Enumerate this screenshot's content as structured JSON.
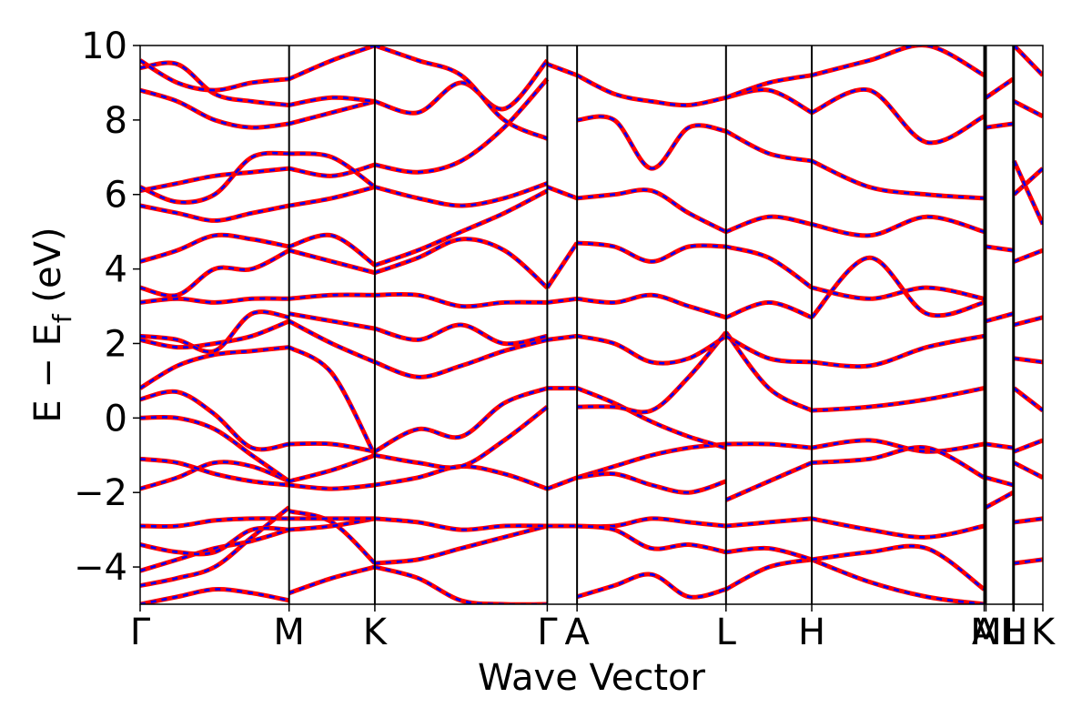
{
  "chart_data": {
    "type": "line",
    "xlabel": "Wave Vector",
    "ylabel_main": "E − E",
    "ylabel_sub": "f",
    "ylabel_unit": " (eV)",
    "ylim": [
      -5,
      10
    ],
    "y_ticks": [
      -4,
      -2,
      0,
      2,
      4,
      6,
      8,
      10
    ],
    "y_tick_labels": [
      "−4",
      "−2",
      "0",
      "2",
      "4",
      "6",
      "8",
      "10"
    ],
    "grid": false,
    "kpath_ticks": [
      {
        "label": "Γ",
        "x": 0.0
      },
      {
        "label": "M",
        "x": 0.165
      },
      {
        "label": "K",
        "x": 0.26
      },
      {
        "label": "Γ",
        "x": 0.451
      },
      {
        "label": "A",
        "x": 0.484
      },
      {
        "label": "L",
        "x": 0.649
      },
      {
        "label": "H",
        "x": 0.744
      },
      {
        "label": "A",
        "x": 0.935
      },
      {
        "label": "M",
        "x": 0.937
      },
      {
        "label": "L",
        "x": 0.967
      },
      {
        "label": "H",
        "x": 0.968
      },
      {
        "label": "K",
        "x": 1.0
      }
    ],
    "series_styles": [
      {
        "color": "#ff0000",
        "style": "solid"
      },
      {
        "color": "#0000ff",
        "style": "dashed"
      }
    ],
    "segments": [
      {
        "x_range": [
          0.0,
          0.165
        ],
        "bands": [
          [
            -5.0,
            -4.8,
            -4.6,
            -4.7,
            -4.9
          ],
          [
            -4.5,
            -4.3,
            -4.0,
            -3.2,
            -2.4
          ],
          [
            -4.1,
            -3.8,
            -3.5,
            -3.3,
            -3.0
          ],
          [
            -3.4,
            -3.6,
            -3.6,
            -3.0,
            -3.0
          ],
          [
            -2.9,
            -2.9,
            -2.75,
            -2.7,
            -2.7
          ],
          [
            -1.9,
            -1.6,
            -1.2,
            -1.3,
            -1.7
          ],
          [
            -1.1,
            -1.2,
            -1.5,
            -1.7,
            -1.8
          ],
          [
            0.0,
            0.0,
            -0.3,
            -1.0,
            -1.7
          ],
          [
            0.5,
            0.7,
            0.1,
            -0.8,
            -0.7
          ],
          [
            0.8,
            1.4,
            1.7,
            1.8,
            1.9
          ],
          [
            2.1,
            1.9,
            2.0,
            2.2,
            2.6
          ],
          [
            2.2,
            2.1,
            1.8,
            2.8,
            2.7
          ],
          [
            3.1,
            3.2,
            3.1,
            3.2,
            3.2
          ],
          [
            3.5,
            3.3,
            4.0,
            4.0,
            4.5
          ],
          [
            4.2,
            4.5,
            4.9,
            4.8,
            4.6
          ],
          [
            5.7,
            5.5,
            5.3,
            5.5,
            5.7
          ],
          [
            6.1,
            6.3,
            6.5,
            6.6,
            6.7
          ],
          [
            6.2,
            5.8,
            6.0,
            7.0,
            7.1
          ],
          [
            8.8,
            8.5,
            8.0,
            7.8,
            7.9
          ],
          [
            9.4,
            9.5,
            8.7,
            8.5,
            8.4
          ],
          [
            9.6,
            9.0,
            8.8,
            9.0,
            9.1
          ]
        ]
      },
      {
        "x_range": [
          0.165,
          0.26
        ],
        "bands": [
          [
            -4.7,
            -4.3,
            -4.0
          ],
          [
            -2.5,
            -2.8,
            -3.9
          ],
          [
            -3.0,
            -2.9,
            -2.7
          ],
          [
            -2.7,
            -2.7,
            -2.7
          ],
          [
            -1.8,
            -1.9,
            -1.8
          ],
          [
            -1.7,
            -1.4,
            -1.0
          ],
          [
            -0.7,
            -0.7,
            -0.9
          ],
          [
            1.9,
            1.2,
            -1.0
          ],
          [
            2.6,
            2.0,
            1.5
          ],
          [
            2.8,
            2.6,
            2.4
          ],
          [
            3.2,
            3.3,
            3.3
          ],
          [
            4.5,
            4.2,
            3.9
          ],
          [
            4.6,
            4.9,
            4.1
          ],
          [
            5.7,
            5.9,
            6.2
          ],
          [
            6.7,
            6.5,
            6.8
          ],
          [
            7.1,
            7.0,
            6.2
          ],
          [
            7.9,
            8.2,
            8.5
          ],
          [
            8.4,
            8.6,
            8.5
          ],
          [
            9.1,
            9.6,
            10.0
          ]
        ]
      },
      {
        "x_range": [
          0.26,
          0.451
        ],
        "bands": [
          [
            -4.0,
            -4.3,
            -4.9,
            -5.0,
            -5.0
          ],
          [
            -3.9,
            -3.8,
            -3.5,
            -3.2,
            -2.9
          ],
          [
            -2.7,
            -2.8,
            -3.0,
            -2.9,
            -2.9
          ],
          [
            -1.8,
            -1.6,
            -1.3,
            -1.5,
            -1.9
          ],
          [
            -1.0,
            -1.2,
            -1.3,
            -0.6,
            0.3
          ],
          [
            -0.9,
            -0.3,
            -0.5,
            0.4,
            0.8
          ],
          [
            1.5,
            1.1,
            1.4,
            1.8,
            2.1
          ],
          [
            2.4,
            2.1,
            2.5,
            2.0,
            2.2
          ],
          [
            3.3,
            3.3,
            3.0,
            3.1,
            3.1
          ],
          [
            3.9,
            4.3,
            4.8,
            4.5,
            3.5
          ],
          [
            4.1,
            4.5,
            5.0,
            5.5,
            6.1
          ],
          [
            6.2,
            5.9,
            5.7,
            5.9,
            6.3
          ],
          [
            6.8,
            6.6,
            6.9,
            7.8,
            9.1
          ],
          [
            8.5,
            8.2,
            9.0,
            8.3,
            9.6
          ],
          [
            10.0,
            9.6,
            9.2,
            8.0,
            7.5
          ]
        ]
      },
      {
        "x_range": [
          0.451,
          0.484
        ],
        "bands": [
          [
            -2.9,
            -2.9
          ],
          [
            -1.9,
            -1.6
          ],
          [
            0.8,
            0.8
          ],
          [
            2.1,
            2.2
          ],
          [
            3.1,
            3.2
          ],
          [
            3.5,
            4.7
          ],
          [
            6.2,
            5.9
          ],
          [
            9.5,
            9.2
          ]
        ]
      },
      {
        "x_range": [
          0.484,
          0.649
        ],
        "bands": [
          [
            -4.8,
            -4.5,
            -4.2,
            -4.8,
            -4.6
          ],
          [
            -2.9,
            -2.9,
            -2.7,
            -2.8,
            -2.9
          ],
          [
            -2.9,
            -3.0,
            -3.5,
            -3.4,
            -3.6
          ],
          [
            -1.6,
            -1.3,
            -1.0,
            -0.8,
            -0.7
          ],
          [
            -1.6,
            -1.5,
            -1.8,
            -2.0,
            -1.7
          ],
          [
            0.8,
            0.4,
            -0.1,
            -0.5,
            -0.8
          ],
          [
            0.3,
            0.3,
            0.2,
            1.1,
            2.3
          ],
          [
            2.2,
            2.0,
            1.5,
            1.6,
            2.2
          ],
          [
            3.2,
            3.1,
            3.3,
            3.0,
            2.7
          ],
          [
            4.7,
            4.6,
            4.2,
            4.6,
            4.6
          ],
          [
            5.9,
            6.0,
            6.1,
            5.5,
            5.0
          ],
          [
            8.0,
            8.0,
            6.7,
            7.8,
            7.7
          ],
          [
            9.2,
            8.7,
            8.5,
            8.4,
            8.6
          ]
        ]
      },
      {
        "x_range": [
          0.649,
          0.744
        ],
        "bands": [
          [
            -4.6,
            -4.0,
            -3.8
          ],
          [
            -2.9,
            -2.8,
            -2.7
          ],
          [
            -3.6,
            -3.5,
            -3.8
          ],
          [
            -0.7,
            -0.7,
            -0.8
          ],
          [
            -2.2,
            -1.7,
            -1.2
          ],
          [
            2.3,
            0.8,
            0.2
          ],
          [
            2.2,
            1.6,
            1.5
          ],
          [
            2.7,
            3.1,
            2.7
          ],
          [
            4.6,
            4.3,
            3.5
          ],
          [
            5.0,
            5.4,
            5.2
          ],
          [
            7.7,
            7.1,
            6.9
          ],
          [
            8.6,
            8.8,
            8.2
          ],
          [
            8.6,
            9.0,
            9.2
          ]
        ]
      },
      {
        "x_range": [
          0.744,
          0.935
        ],
        "bands": [
          [
            -3.8,
            -4.4,
            -4.8,
            -5.0
          ],
          [
            -2.7,
            -3.0,
            -3.2,
            -2.9
          ],
          [
            -3.8,
            -3.6,
            -3.5,
            -4.6
          ],
          [
            -0.8,
            -0.6,
            -0.9,
            -0.7
          ],
          [
            -1.2,
            -1.1,
            -0.8,
            -1.6
          ],
          [
            0.2,
            0.3,
            0.5,
            0.8
          ],
          [
            1.5,
            1.4,
            1.9,
            2.2
          ],
          [
            2.7,
            4.3,
            2.8,
            3.1
          ],
          [
            3.5,
            3.2,
            3.5,
            3.2
          ],
          [
            5.2,
            4.9,
            5.4,
            5.0
          ],
          [
            6.9,
            6.2,
            6.0,
            5.9
          ],
          [
            8.2,
            8.8,
            7.4,
            8.1
          ],
          [
            9.2,
            9.6,
            10.0,
            9.2
          ]
        ]
      },
      {
        "x_range": [
          0.937,
          0.967
        ],
        "bands": [
          [
            -2.4,
            -2.0
          ],
          [
            -1.6,
            -1.8
          ],
          [
            -0.7,
            -0.8
          ],
          [
            2.6,
            2.8
          ],
          [
            4.6,
            4.5
          ],
          [
            8.6,
            9.1
          ],
          [
            7.8,
            7.9
          ]
        ]
      },
      {
        "x_range": [
          0.968,
          1.0
        ],
        "bands": [
          [
            -3.9,
            -3.8
          ],
          [
            -2.8,
            -2.7
          ],
          [
            -1.2,
            -1.6
          ],
          [
            -0.9,
            -0.6
          ],
          [
            0.8,
            0.2
          ],
          [
            1.6,
            1.5
          ],
          [
            2.5,
            2.7
          ],
          [
            4.2,
            4.5
          ],
          [
            6.0,
            6.7
          ],
          [
            6.9,
            5.2
          ],
          [
            8.5,
            8.1
          ],
          [
            10.0,
            9.2
          ]
        ]
      }
    ]
  }
}
